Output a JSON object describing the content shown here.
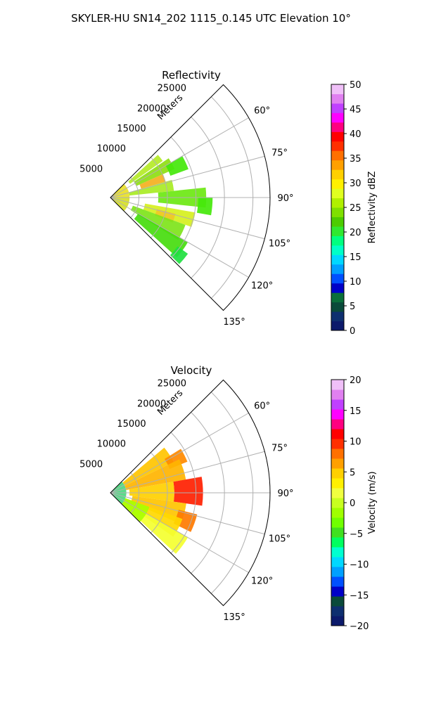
{
  "figure": {
    "suptitle": "SKYLER-HU  SN14_202  1115_0.145 UTC Elevation 10°"
  },
  "chart_data": [
    {
      "type": "heatmap",
      "subtype": "polar-ppi",
      "title": "Reflectivity",
      "range_label": "Meters",
      "range_ticks": [
        5000,
        10000,
        15000,
        20000,
        25000
      ],
      "range_tick_labels": [
        "5000",
        "10000",
        "15000",
        "20000",
        "25000"
      ],
      "range_max": 28000,
      "azimuth_range_deg": [
        45,
        135
      ],
      "azimuth_ticks": [
        "60°",
        "75°",
        "90°",
        "105°",
        "120°",
        "135°"
      ],
      "grid": true,
      "colorbar": {
        "label": "Reflectivity dBZ",
        "min": 0,
        "max": 50,
        "ticks": [
          "0",
          "5",
          "10",
          "15",
          "20",
          "25",
          "30",
          "35",
          "40",
          "45",
          "50"
        ],
        "colors": [
          "#0c1a6b",
          "#0e2f6f",
          "#0a4a3a",
          "#0a6f3a",
          "#0000c8",
          "#0050ff",
          "#00a0ff",
          "#00d8ff",
          "#00ffc8",
          "#00ff80",
          "#30e830",
          "#4ccc00",
          "#7fe000",
          "#b0f000",
          "#e0ff20",
          "#fff000",
          "#ffd000",
          "#ffa000",
          "#ff7000",
          "#ff3000",
          "#ff0000",
          "#ff0080",
          "#ff00ff",
          "#c040ff",
          "#e080f0",
          "#f0c0f8"
        ]
      },
      "cells": [
        {
          "az": [
            48,
            55
          ],
          "r": [
            0.15,
            0.4
          ],
          "color": "#b4ea28"
        },
        {
          "az": [
            56,
            66
          ],
          "r": [
            0.18,
            0.44
          ],
          "color": "#8ede12"
        },
        {
          "az": [
            60,
            70
          ],
          "r": [
            0.4,
            0.52
          ],
          "color": "#44e80a"
        },
        {
          "az": [
            66,
            74
          ],
          "r": [
            0.2,
            0.36
          ],
          "color": "#f4b020"
        },
        {
          "az": [
            74,
            84
          ],
          "r": [
            0.12,
            0.4
          ],
          "color": "#a8ec24"
        },
        {
          "az": [
            84,
            96
          ],
          "r": [
            0.3,
            0.6
          ],
          "color": "#6ce812"
        },
        {
          "az": [
            90,
            100
          ],
          "r": [
            0.55,
            0.64
          ],
          "color": "#44e80a"
        },
        {
          "az": [
            100,
            110
          ],
          "r": [
            0.22,
            0.54
          ],
          "color": "#d6f01e"
        },
        {
          "az": [
            104,
            112
          ],
          "r": [
            0.3,
            0.42
          ],
          "color": "#f0c828"
        },
        {
          "az": [
            110,
            122
          ],
          "r": [
            0.15,
            0.5
          ],
          "color": "#7ee41a"
        },
        {
          "az": [
            120,
            132
          ],
          "r": [
            0.2,
            0.56
          ],
          "color": "#46dc0e"
        },
        {
          "az": [
            126,
            134
          ],
          "r": [
            0.52,
            0.6
          ],
          "color": "#20e040"
        },
        {
          "az": [
            45,
            90
          ],
          "r": [
            0.0,
            0.12
          ],
          "color": "#e8e028"
        },
        {
          "az": [
            90,
            135
          ],
          "r": [
            0.0,
            0.12
          ],
          "color": "#d6e028"
        }
      ]
    },
    {
      "type": "heatmap",
      "subtype": "polar-ppi",
      "title": "Velocity",
      "range_label": "Meters",
      "range_ticks": [
        5000,
        10000,
        15000,
        20000,
        25000
      ],
      "range_tick_labels": [
        "5000",
        "10000",
        "15000",
        "20000",
        "25000"
      ],
      "range_max": 28000,
      "azimuth_range_deg": [
        45,
        135
      ],
      "azimuth_ticks": [
        "60°",
        "75°",
        "90°",
        "105°",
        "120°",
        "135°"
      ],
      "grid": true,
      "colorbar": {
        "label": "Velocity (m/s)",
        "min": -20,
        "max": 20,
        "ticks": [
          "−20",
          "−15",
          "−10",
          "−5",
          "0",
          "5",
          "10",
          "15",
          "20"
        ],
        "colors": [
          "#0c1a6b",
          "#0e2f6f",
          "#0a4a3a",
          "#0000c8",
          "#0050ff",
          "#00a0ff",
          "#00d8ff",
          "#00ffd0",
          "#00ff60",
          "#40e020",
          "#70ff00",
          "#a0ff00",
          "#c8ff20",
          "#f0ff40",
          "#fff000",
          "#ffd000",
          "#ffa000",
          "#ff7000",
          "#ff3000",
          "#ff0000",
          "#ff0080",
          "#ff00ff",
          "#c040ff",
          "#e080f0",
          "#f0c0f8"
        ]
      },
      "cells": [
        {
          "az": [
            46,
            135
          ],
          "r": [
            0.0,
            0.1
          ],
          "color": "#4cd880"
        },
        {
          "az": [
            50,
            64
          ],
          "r": [
            0.1,
            0.44
          ],
          "color": "#ffc400"
        },
        {
          "az": [
            58,
            68
          ],
          "r": [
            0.4,
            0.52
          ],
          "color": "#ff8a00"
        },
        {
          "az": [
            64,
            80
          ],
          "r": [
            0.1,
            0.48
          ],
          "color": "#ffb400"
        },
        {
          "az": [
            80,
            98
          ],
          "r": [
            0.4,
            0.58
          ],
          "color": "#ff2000"
        },
        {
          "az": [
            80,
            98
          ],
          "r": [
            0.12,
            0.4
          ],
          "color": "#ffd000"
        },
        {
          "az": [
            98,
            114
          ],
          "r": [
            0.14,
            0.48
          ],
          "color": "#ffc400"
        },
        {
          "az": [
            104,
            116
          ],
          "r": [
            0.44,
            0.56
          ],
          "color": "#ff7a00"
        },
        {
          "az": [
            110,
            125
          ],
          "r": [
            0.1,
            0.48
          ],
          "color": "#ffd800"
        },
        {
          "az": [
            120,
            133
          ],
          "r": [
            0.1,
            0.56
          ],
          "color": "#f4ff30"
        },
        {
          "az": [
            110,
            135
          ],
          "r": [
            0.1,
            0.26
          ],
          "color": "#a8ff00"
        }
      ]
    }
  ]
}
